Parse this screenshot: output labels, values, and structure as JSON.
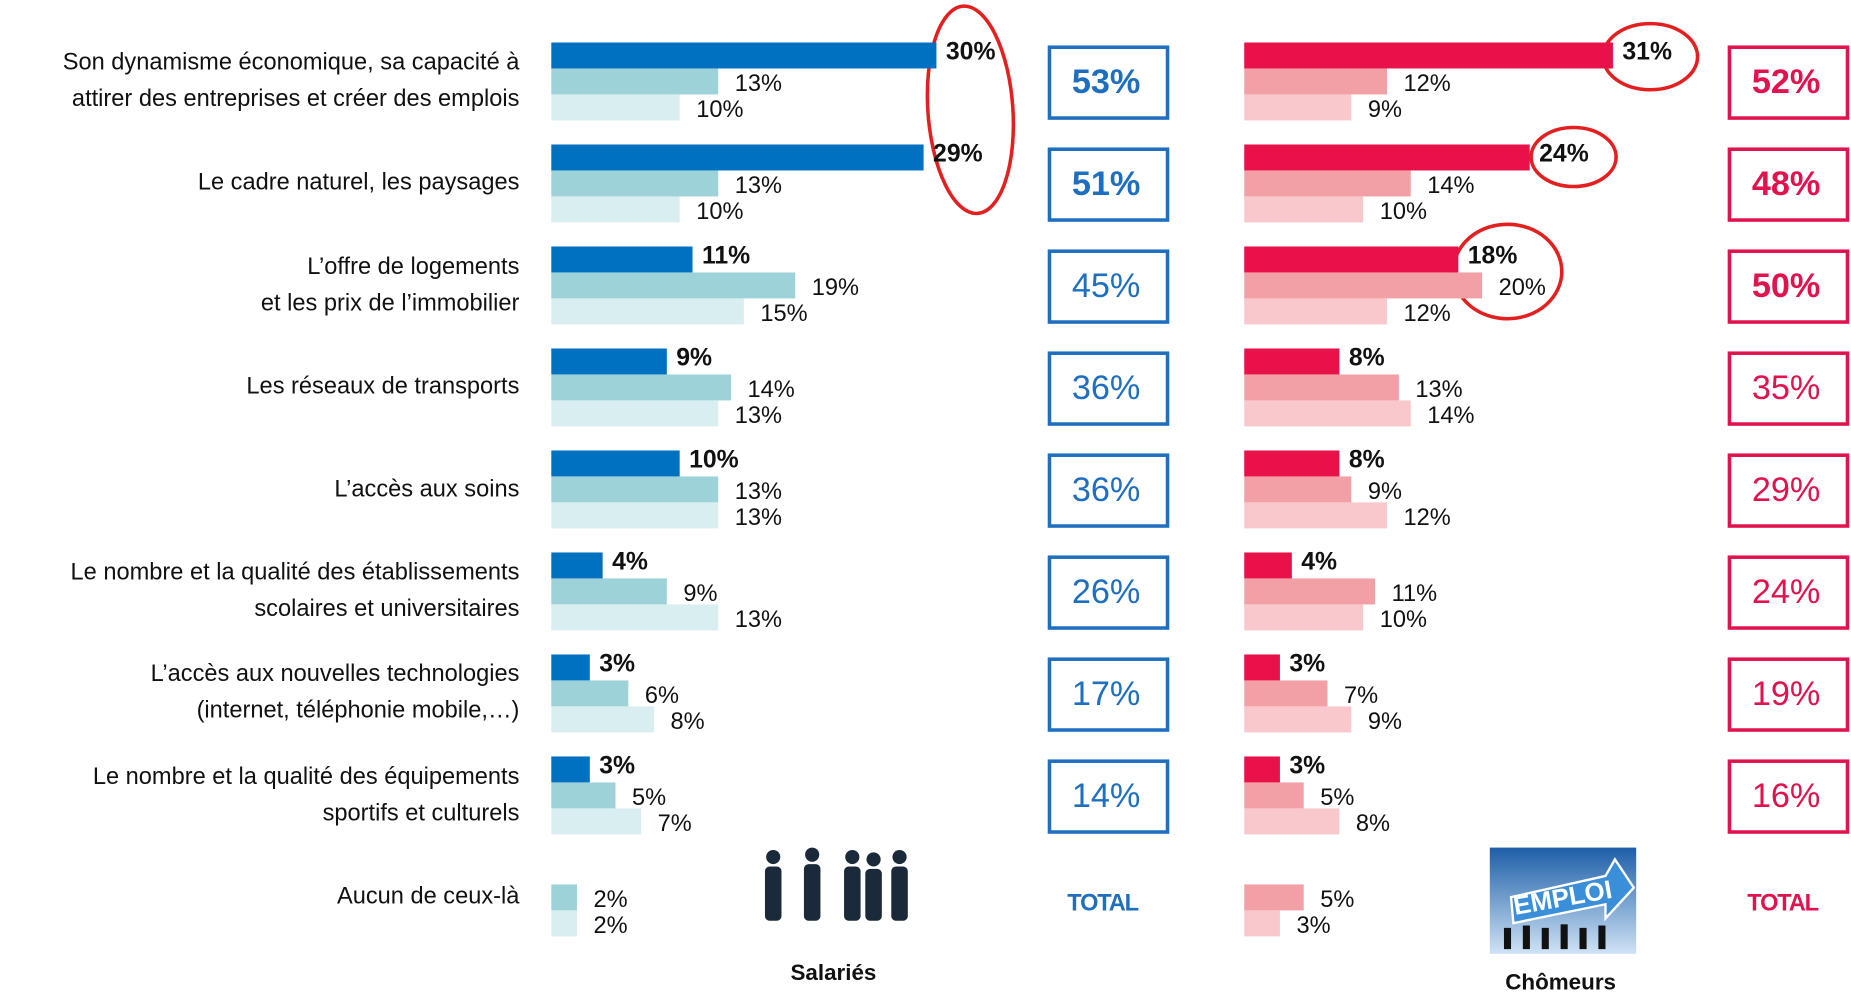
{
  "chart_data": [
    {
      "type": "bar",
      "caption": "Salariés",
      "categories": [
        "Son dynamisme économique, sa capacité à\nattirer des entreprises et créer des emplois",
        "Le cadre naturel, les paysages",
        "L’offre de logements\net les prix de l’immobilier",
        "Les réseaux de transports",
        "L’accès aux soins",
        "Le nombre et la qualité des établissements\nscolaires et universitaires",
        "L’accès aux nouvelles technologies\n(internet, téléphonie mobile,…)",
        "Le nombre et la qualité des équipements\nsportifs et culturels",
        "Aucun de ceux-là"
      ],
      "xlim": [
        0,
        40
      ],
      "series": [
        {
          "color": "#0070c0",
          "bold": true,
          "values": [
            30,
            29,
            11,
            9,
            10,
            4,
            3,
            3,
            null
          ],
          "value_labels": [
            "30%",
            "29%",
            "11%",
            "9%",
            "10%",
            "4%",
            "3%",
            "3%",
            null
          ]
        },
        {
          "color": "#9dd3d8",
          "values": [
            13,
            13,
            19,
            14,
            13,
            9,
            6,
            5,
            2
          ],
          "value_labels": [
            "13%",
            "13%",
            "19%",
            "14%",
            "13%",
            "9%",
            "6%",
            "5%",
            "2%"
          ]
        },
        {
          "color": "#d9eef0",
          "values": [
            10,
            10,
            15,
            13,
            13,
            13,
            8,
            7,
            2
          ],
          "value_labels": [
            "10%",
            "10%",
            "15%",
            "13%",
            "13%",
            "13%",
            "8%",
            "7%",
            "2%"
          ]
        }
      ],
      "total_title": "TOTAL",
      "total_color": "#1f6fc0",
      "totals": [
        53,
        51,
        45,
        36,
        36,
        26,
        17,
        14
      ],
      "total_labels": [
        "53%",
        "51%",
        "45%",
        "36%",
        "36%",
        "26%",
        "17%",
        "14%"
      ],
      "total_bold": [
        true,
        true,
        false,
        false,
        false,
        false,
        false,
        false
      ]
    },
    {
      "type": "bar",
      "caption": "Chômeurs",
      "image_text": "EMPLOI",
      "xlim": [
        0,
        40
      ],
      "series": [
        {
          "color": "#e8114a",
          "bold": true,
          "values": [
            31,
            24,
            18,
            8,
            8,
            4,
            3,
            3,
            null
          ],
          "value_labels": [
            "31%",
            "24%",
            "18%",
            "8%",
            "8%",
            "4%",
            "3%",
            "3%",
            null
          ]
        },
        {
          "color": "#f2a0a6",
          "values": [
            12,
            14,
            20,
            13,
            9,
            11,
            7,
            5,
            5
          ],
          "value_labels": [
            "12%",
            "14%",
            "20%",
            "13%",
            "9%",
            "11%",
            "7%",
            "5%",
            "5%"
          ]
        },
        {
          "color": "#f8c8cc",
          "values": [
            9,
            10,
            12,
            14,
            12,
            10,
            9,
            8,
            3
          ],
          "value_labels": [
            "9%",
            "10%",
            "12%",
            "14%",
            "12%",
            "10%",
            "9%",
            "8%",
            "3%"
          ]
        }
      ],
      "total_title": "TOTAL",
      "total_color": "#e0134f",
      "totals": [
        52,
        48,
        50,
        35,
        29,
        24,
        19,
        16
      ],
      "total_labels": [
        "52%",
        "48%",
        "50%",
        "35%",
        "29%",
        "24%",
        "19%",
        "16%"
      ],
      "total_bold": [
        true,
        true,
        true,
        false,
        false,
        false,
        false,
        false
      ]
    }
  ]
}
